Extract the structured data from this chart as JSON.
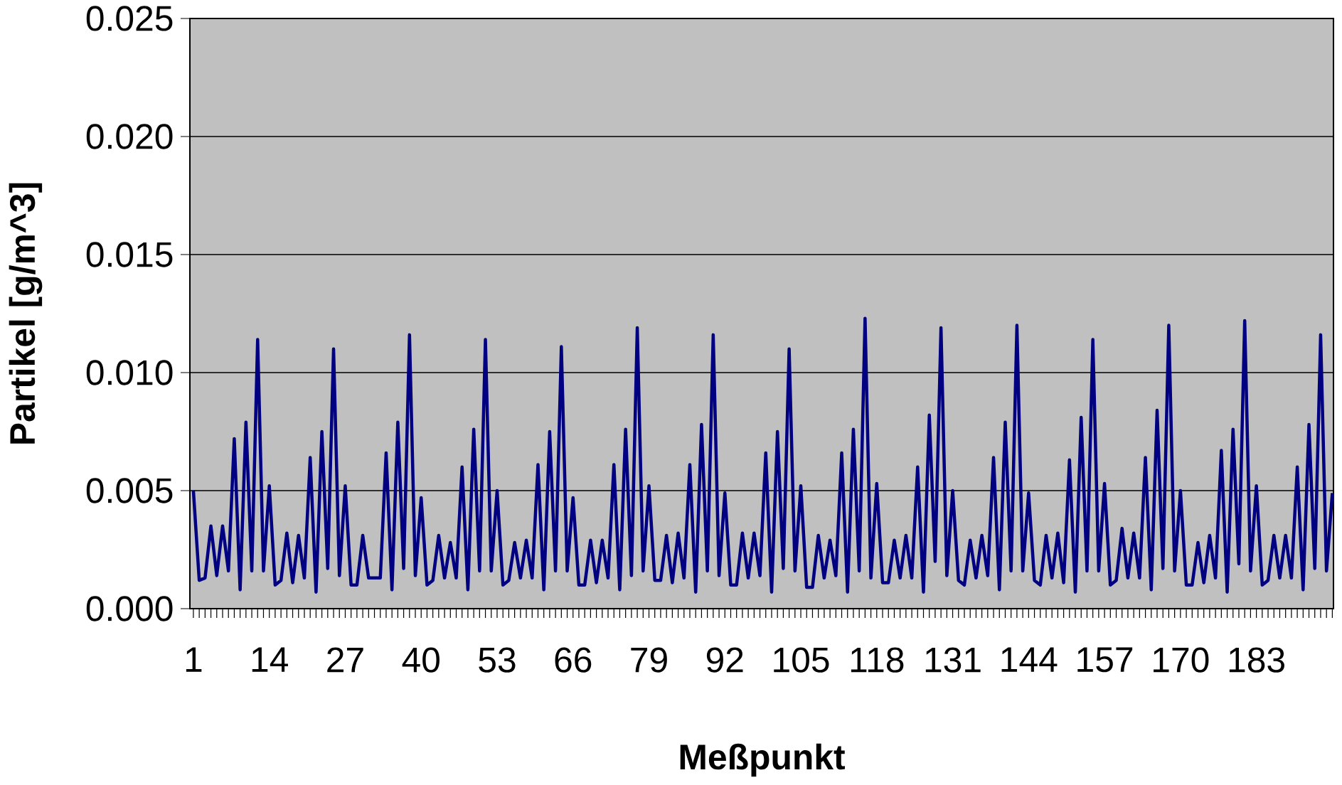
{
  "chart_data": {
    "type": "line",
    "xlabel": "Meßpunkt",
    "ylabel": "Partikel [g/m^3]",
    "categories": [
      "1",
      null,
      null,
      null,
      null,
      null,
      null,
      null,
      null,
      null,
      null,
      null,
      null,
      "14",
      null,
      null,
      null,
      null,
      null,
      null,
      null,
      null,
      null,
      null,
      null,
      null,
      "27",
      null,
      null,
      null,
      null,
      null,
      null,
      null,
      null,
      null,
      null,
      null,
      null,
      "40",
      null,
      null,
      null,
      null,
      null,
      null,
      null,
      null,
      null,
      null,
      null,
      null,
      "53",
      null,
      null,
      null,
      null,
      null,
      null,
      null,
      null,
      null,
      null,
      null,
      null,
      "66",
      null,
      null,
      null,
      null,
      null,
      null,
      null,
      null,
      null,
      null,
      null,
      null,
      "79",
      null,
      null,
      null,
      null,
      null,
      null,
      null,
      null,
      null,
      null,
      null,
      null,
      "92",
      null,
      null,
      null,
      null,
      null,
      null,
      null,
      null,
      null,
      null,
      null,
      null,
      "105",
      null,
      null,
      null,
      null,
      null,
      null,
      null,
      null,
      null,
      null,
      null,
      null,
      "118",
      null,
      null,
      null,
      null,
      null,
      null,
      null,
      null,
      null,
      null,
      null,
      null,
      "131",
      null,
      null,
      null,
      null,
      null,
      null,
      null,
      null,
      null,
      null,
      null,
      null,
      "144",
      null,
      null,
      null,
      null,
      null,
      null,
      null,
      null,
      null,
      null,
      null,
      null,
      "157",
      null,
      null,
      null,
      null,
      null,
      null,
      null,
      null,
      null,
      null,
      null,
      null,
      "170",
      null,
      null,
      null,
      null,
      null,
      null,
      null,
      null,
      null,
      null,
      null,
      null,
      "183",
      null,
      null,
      null,
      null,
      null,
      null,
      null,
      null,
      null,
      null,
      null,
      null,
      null
    ],
    "series": [
      {
        "color": "#000080",
        "values": [
          0.005,
          0.0012,
          0.0013,
          0.0035,
          0.0014,
          0.0035,
          0.0016,
          0.0072,
          0.0008,
          0.0079,
          0.0016,
          0.0114,
          0.0016,
          0.0052,
          0.001,
          0.0012,
          0.0032,
          0.0011,
          0.0031,
          0.0013,
          0.0064,
          0.0007,
          0.0075,
          0.0017,
          0.011,
          0.0014,
          0.0052,
          0.001,
          0.001,
          0.0031,
          0.0013,
          0.0013,
          0.0013,
          0.0066,
          0.0008,
          0.0079,
          0.0017,
          0.0116,
          0.0014,
          0.0047,
          0.001,
          0.0012,
          0.0031,
          0.0013,
          0.0028,
          0.0013,
          0.006,
          0.0008,
          0.0076,
          0.0016,
          0.0114,
          0.0016,
          0.005,
          0.001,
          0.0012,
          0.0028,
          0.0013,
          0.0029,
          0.0013,
          0.0061,
          0.0008,
          0.0075,
          0.0016,
          0.0111,
          0.0016,
          0.0047,
          0.001,
          0.001,
          0.0029,
          0.0011,
          0.0029,
          0.0013,
          0.0061,
          0.0008,
          0.0076,
          0.0014,
          0.0119,
          0.0016,
          0.0052,
          0.0012,
          0.0012,
          0.0031,
          0.0011,
          0.0032,
          0.0013,
          0.0061,
          0.0007,
          0.0078,
          0.0016,
          0.0116,
          0.0014,
          0.0049,
          0.001,
          0.001,
          0.0032,
          0.0013,
          0.0032,
          0.0014,
          0.0066,
          0.0007,
          0.0075,
          0.0017,
          0.011,
          0.0016,
          0.0052,
          0.0009,
          0.0009,
          0.0031,
          0.0013,
          0.0029,
          0.0014,
          0.0066,
          0.0007,
          0.0076,
          0.0016,
          0.0123,
          0.0013,
          0.0053,
          0.0011,
          0.0011,
          0.0029,
          0.0013,
          0.0031,
          0.0013,
          0.006,
          0.0007,
          0.0082,
          0.002,
          0.0119,
          0.0014,
          0.005,
          0.0012,
          0.001,
          0.0029,
          0.0013,
          0.0031,
          0.0014,
          0.0064,
          0.0008,
          0.0079,
          0.0016,
          0.012,
          0.0016,
          0.0049,
          0.0012,
          0.001,
          0.0031,
          0.0013,
          0.0032,
          0.0011,
          0.0063,
          0.0007,
          0.0081,
          0.0016,
          0.0114,
          0.0016,
          0.0053,
          0.001,
          0.0012,
          0.0034,
          0.0013,
          0.0032,
          0.0013,
          0.0064,
          0.0008,
          0.0084,
          0.0017,
          0.012,
          0.0016,
          0.005,
          0.001,
          0.001,
          0.0028,
          0.0011,
          0.0031,
          0.0013,
          0.0067,
          0.0007,
          0.0076,
          0.0019,
          0.0122,
          0.0016,
          0.0052,
          0.001,
          0.0012,
          0.0031,
          0.0013,
          0.0031,
          0.0013,
          0.006,
          0.0008,
          0.0078,
          0.0017,
          0.0116,
          0.0016,
          0.0049
        ]
      }
    ],
    "ylim": [
      0,
      0.025
    ],
    "yticks": [
      {
        "value": 0,
        "label": "0.000"
      },
      {
        "value": 0.005,
        "label": "0.005"
      },
      {
        "value": 0.01,
        "label": "0.010"
      },
      {
        "value": 0.015,
        "label": "0.015"
      },
      {
        "value": 0.02,
        "label": "0.020"
      },
      {
        "value": 0.025,
        "label": "0.025"
      }
    ],
    "grid": "y"
  }
}
